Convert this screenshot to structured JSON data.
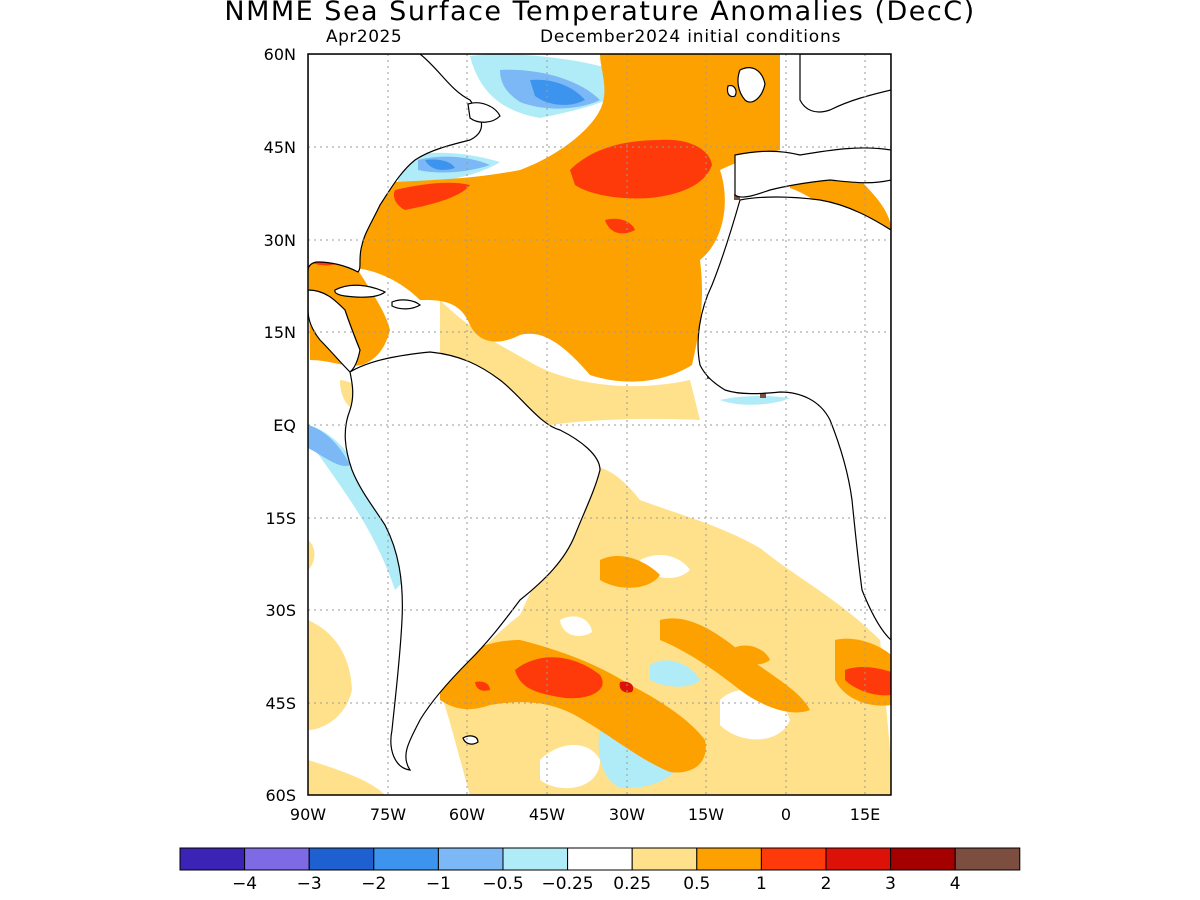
{
  "title": "NMME Sea Surface Temperature Anomalies (DecC)",
  "subtitle_left": "Apr2025",
  "subtitle_right": "December2024 initial conditions",
  "map": {
    "region": "Atlantic Ocean",
    "lon_range": [
      -90,
      20
    ],
    "lat_range": [
      -60,
      60
    ],
    "grid": "dotted",
    "lat_labels": [
      "60N",
      "45N",
      "30N",
      "15N",
      "EQ",
      "15S",
      "30S",
      "45S",
      "60S"
    ],
    "lat_values": [
      60,
      45,
      30,
      15,
      0,
      -15,
      -30,
      -45,
      -60
    ],
    "lon_labels": [
      "90W",
      "75W",
      "60W",
      "45W",
      "30W",
      "15W",
      "0",
      "15E"
    ],
    "lon_values": [
      -90,
      -75,
      -60,
      -45,
      -30,
      -15,
      0,
      15
    ]
  },
  "colorbar": {
    "colors": [
      "#3a23b5",
      "#7f6ae6",
      "#1f60d0",
      "#3c94ef",
      "#7bb8f5",
      "#b0ecf8",
      "#ffffff",
      "#fee18a",
      "#fda100",
      "#ff3a0a",
      "#dc1208",
      "#a50000",
      "#7b4e40"
    ],
    "labels": [
      "−4",
      "−3",
      "−2",
      "−1",
      "−0.5",
      "−0.25",
      "0.25",
      "0.5",
      "1",
      "2",
      "3",
      "4"
    ]
  }
}
